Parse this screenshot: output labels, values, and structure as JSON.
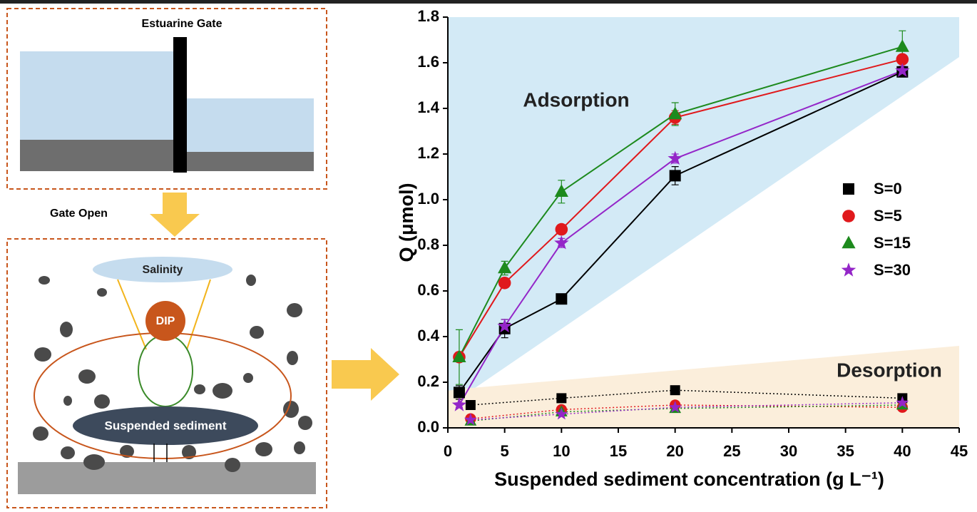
{
  "diagram": {
    "gate_label": "Estuarine Gate",
    "arrow_label": "Gate Open",
    "salinity": "Salinity",
    "dip": "DIP",
    "sediment": "Suspended sediment"
  },
  "chart_data": {
    "type": "line",
    "x_label": "Suspended sediment concentration (g L⁻¹)",
    "y_label": "Q (μmol)",
    "annotations": [
      "Adsorption",
      "Desorption"
    ],
    "x": [
      1,
      5,
      10,
      20,
      40
    ],
    "desorption_x": [
      2,
      10,
      20,
      40
    ],
    "xlim": [
      0,
      45
    ],
    "xticks": [
      0,
      5,
      10,
      15,
      20,
      25,
      30,
      35,
      40,
      45
    ],
    "ylim": [
      0,
      1.8
    ],
    "yticks": [
      {
        "value": 0,
        "label": "0.0"
      },
      0.2,
      0.4,
      0.6,
      0.8,
      {
        "value": 1,
        "label": "1.0"
      },
      1.2,
      1.4,
      1.6,
      1.8
    ],
    "series": [
      {
        "name": "S=0",
        "color": "#000000",
        "marker": "square",
        "values": [
          0.155,
          0.435,
          0.565,
          1.105,
          1.56
        ],
        "errors": [
          0.03,
          0.04,
          0.01,
          0.04,
          0.02
        ],
        "desorption_values": [
          0.1,
          0.13,
          0.165,
          0.13
        ]
      },
      {
        "name": "S=5",
        "color": "#e0191c",
        "marker": "circle",
        "values": [
          0.31,
          0.635,
          0.87,
          1.36,
          1.615
        ],
        "errors": [
          0.02,
          0.02,
          0.02,
          0.03,
          0.02
        ],
        "desorption_values": [
          0.04,
          0.08,
          0.1,
          0.09
        ]
      },
      {
        "name": "S=15",
        "color": "#1d8a1d",
        "marker": "triangle",
        "values": [
          0.31,
          0.7,
          1.035,
          1.375,
          1.67
        ],
        "errors": [
          0.12,
          0.03,
          0.05,
          0.05,
          0.07
        ],
        "desorption_values": [
          0.03,
          0.07,
          0.085,
          0.1
        ]
      },
      {
        "name": "S=30",
        "color": "#9426c8",
        "marker": "star",
        "values": [
          0.1,
          0.445,
          0.81,
          1.18,
          1.565
        ],
        "errors": [
          0.01,
          0.03,
          0.02,
          0.02,
          0.02
        ],
        "desorption_values": [
          0.035,
          0.06,
          0.09,
          0.11
        ]
      }
    ]
  }
}
